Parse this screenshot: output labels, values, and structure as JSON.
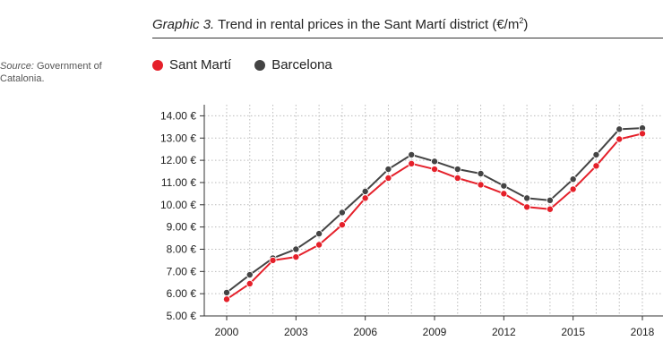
{
  "colors": {
    "sant_marti": "#e5202a",
    "barcelona": "#444444",
    "grid": "#bbbbbb",
    "axis": "#333333"
  },
  "header": {
    "title_prefix": "Graphic 3.",
    "title_main": "Trend in rental prices in the Sant Martí district (€/m",
    "title_sup": "2",
    "title_suffix": ")"
  },
  "source": {
    "label": "Source:",
    "text": "Government of Catalonia."
  },
  "chart_data": {
    "type": "line",
    "x": [
      2000,
      2001,
      2002,
      2003,
      2004,
      2005,
      2006,
      2007,
      2008,
      2009,
      2010,
      2011,
      2012,
      2013,
      2014,
      2015,
      2016,
      2017,
      2018
    ],
    "series": [
      {
        "name": "Sant Martí",
        "color": "#e5202a",
        "values": [
          5.75,
          6.45,
          7.5,
          7.65,
          8.2,
          9.1,
          10.3,
          11.2,
          11.85,
          11.6,
          11.2,
          10.9,
          10.5,
          9.9,
          9.8,
          10.7,
          11.75,
          12.95,
          13.2
        ]
      },
      {
        "name": "Barcelona",
        "color": "#444444",
        "values": [
          6.05,
          6.85,
          7.6,
          8.0,
          8.7,
          9.65,
          10.6,
          11.6,
          12.25,
          11.95,
          11.6,
          11.4,
          10.85,
          10.3,
          10.2,
          11.15,
          12.25,
          13.4,
          13.45
        ]
      }
    ],
    "xticks": [
      "2000",
      "2003",
      "2006",
      "2009",
      "2012",
      "2015",
      "2018"
    ],
    "yticks": [
      "5.00 €",
      "6.00 €",
      "7.00 €",
      "8.00 €",
      "9.00 €",
      "10.00 €",
      "11.00 €",
      "12.00 €",
      "13.00 €",
      "14.00 €"
    ],
    "ylim": [
      5,
      14.5
    ],
    "xlim": [
      2000,
      2018
    ],
    "grid": true,
    "legend_placement": "top-left"
  }
}
